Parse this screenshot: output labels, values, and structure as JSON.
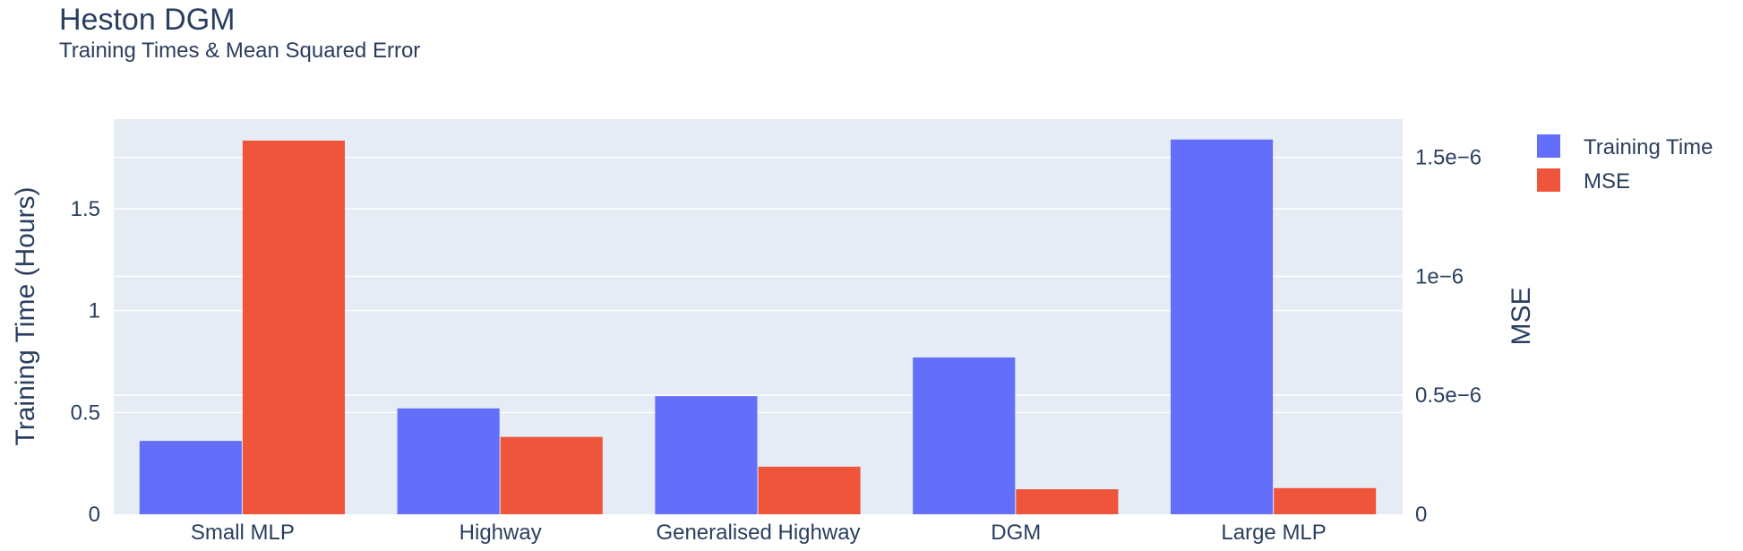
{
  "chart_data": {
    "type": "bar",
    "title": "Heston DGM",
    "subtitle": "Training Times & Mean Squared Error",
    "categories": [
      "Small MLP",
      "Highway",
      "Generalised Highway",
      "DGM",
      "Large MLP"
    ],
    "series": [
      {
        "name": "Training Time",
        "axis": "left",
        "color": "#636efa",
        "values": [
          0.36,
          0.52,
          0.58,
          0.77,
          1.84
        ]
      },
      {
        "name": "MSE",
        "axis": "right",
        "color": "#ef553b",
        "values": [
          1.57e-06,
          3.25e-07,
          2e-07,
          1.05e-07,
          1.1e-07
        ]
      }
    ],
    "ylabel": "Training Time (Hours)",
    "y2label": "MSE",
    "ylim": [
      0,
      1.94
    ],
    "y2lim": [
      0,
      1.66e-06
    ],
    "yticks": [
      {
        "value": 0,
        "label": "0"
      },
      {
        "value": 0.5,
        "label": "0.5"
      },
      {
        "value": 1,
        "label": "1"
      },
      {
        "value": 1.5,
        "label": "1.5"
      }
    ],
    "y2ticks": [
      {
        "value": 0,
        "label": "0"
      },
      {
        "value": 5e-07,
        "label": "0.5e−6"
      },
      {
        "value": 1e-06,
        "label": "1e−6"
      },
      {
        "value": 1.5e-06,
        "label": "1.5e−6"
      }
    ],
    "grid": true,
    "legend_position": "top-right",
    "colors": {
      "plot_bg": "#e5ecf6",
      "grid": "#ffffff",
      "text": "#2a3f5f"
    }
  }
}
